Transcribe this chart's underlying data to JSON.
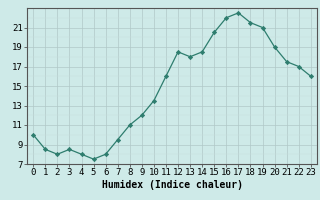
{
  "x": [
    0,
    1,
    2,
    3,
    4,
    5,
    6,
    7,
    8,
    9,
    10,
    11,
    12,
    13,
    14,
    15,
    16,
    17,
    18,
    19,
    20,
    21,
    22,
    23
  ],
  "y": [
    10.0,
    8.5,
    8.0,
    8.5,
    8.0,
    7.5,
    8.0,
    9.5,
    11.0,
    12.0,
    13.5,
    16.0,
    18.5,
    18.0,
    18.5,
    20.5,
    22.0,
    22.5,
    21.5,
    21.0,
    19.0,
    17.5,
    17.0,
    16.0
  ],
  "xlabel": "Humidex (Indice chaleur)",
  "xlim": [
    -0.5,
    23.5
  ],
  "ylim": [
    7,
    23
  ],
  "yticks": [
    7,
    9,
    11,
    13,
    15,
    17,
    19,
    21
  ],
  "xtick_labels": [
    "0",
    "1",
    "2",
    "3",
    "4",
    "5",
    "6",
    "7",
    "8",
    "9",
    "10",
    "11",
    "12",
    "13",
    "14",
    "15",
    "16",
    "17",
    "18",
    "19",
    "20",
    "21",
    "22",
    "23"
  ],
  "line_color": "#2e7d6e",
  "marker_color": "#2e7d6e",
  "bg_color": "#ceeae8",
  "grid_color_minor": "#c8dede",
  "grid_color_major": "#b0c8c8",
  "label_fontsize": 7,
  "tick_fontsize": 6.5
}
